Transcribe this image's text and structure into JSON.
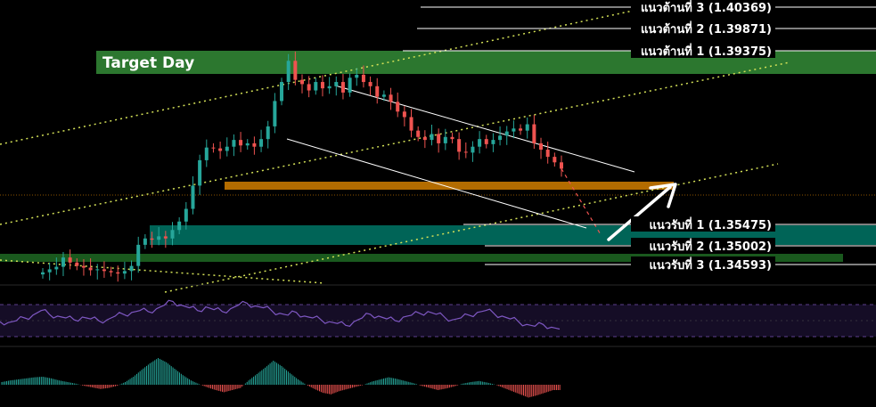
{
  "chart_data": {
    "type": "candlestick",
    "title": "",
    "target_label": "Target Day",
    "resistance_levels": [
      {
        "label": "แนวต้านที่ 3 (1.40369)",
        "price": 1.40369
      },
      {
        "label": "แนวต้านที่ 2 (1.39871)",
        "price": 1.39871
      },
      {
        "label": "แนวต้านที่ 1 (1.39375)",
        "price": 1.39375
      }
    ],
    "support_levels": [
      {
        "label": "แนวรับที่ 1 (1.35475)",
        "price": 1.35475
      },
      {
        "label": "แนวรับที่ 2 (1.35002)",
        "price": 1.35002
      },
      {
        "label": "แนวรับที่ 3 (1.34593)",
        "price": 1.34593
      }
    ],
    "ylim": [
      1.3425,
      1.4082
    ],
    "close_path": [
      1.3455,
      1.3462,
      1.3468,
      1.349,
      1.3478,
      1.347,
      1.3466,
      1.346,
      1.3462,
      1.3458,
      1.3455,
      1.3452,
      1.3458,
      1.347,
      1.352,
      1.3535,
      1.3532,
      1.354,
      1.3535,
      1.3555,
      1.3575,
      1.3605,
      1.366,
      1.372,
      1.375,
      1.3748,
      1.3742,
      1.3752,
      1.3768,
      1.3755,
      1.376,
      1.3752,
      1.377,
      1.38,
      1.386,
      1.3905,
      1.3955,
      1.391,
      1.39,
      1.3885,
      1.3905,
      1.389,
      1.3895,
      1.3905,
      1.388,
      1.3915,
      1.3922,
      1.3905,
      1.3895,
      1.387,
      1.3875,
      1.3858,
      1.3835,
      1.3822,
      1.379,
      1.3775,
      1.3768,
      1.3782,
      1.376,
      1.3775,
      1.377,
      1.374,
      1.3738,
      1.3752,
      1.377,
      1.3758,
      1.3768,
      1.3778,
      1.3788,
      1.3795,
      1.379,
      1.3805,
      1.376,
      1.3745,
      1.3728,
      1.3715,
      1.37
    ],
    "rsi_path": [
      48,
      47,
      49,
      52,
      55,
      60,
      56,
      54,
      52,
      50,
      53,
      51,
      49,
      50,
      54,
      56,
      58,
      60,
      59,
      62,
      66,
      70,
      66,
      63,
      60,
      64,
      61,
      59,
      62,
      66,
      68,
      65,
      63,
      60,
      57,
      55,
      58,
      54,
      52,
      50,
      48,
      46,
      44,
      48,
      52,
      56,
      54,
      51,
      49,
      53,
      55,
      57,
      59,
      56,
      53,
      50,
      52,
      55,
      58,
      60,
      57,
      54,
      51,
      48,
      45,
      43,
      45,
      42,
      40
    ],
    "macd_hist": [
      0.5,
      0.8,
      1.0,
      1.2,
      1.4,
      1.5,
      1.2,
      0.8,
      0.5,
      0.2,
      -0.2,
      -0.5,
      -0.8,
      -0.6,
      -0.2,
      0.5,
      1.5,
      2.8,
      4.0,
      5.0,
      4.2,
      3.0,
      1.8,
      0.8,
      0.1,
      -0.5,
      -1.0,
      -1.4,
      -1.0,
      -0.6,
      0.8,
      2.0,
      3.2,
      4.5,
      3.5,
      2.2,
      1.0,
      0.0,
      -0.8,
      -1.5,
      -1.8,
      -1.2,
      -0.8,
      -0.4,
      0.0,
      0.6,
      1.0,
      1.4,
      1.1,
      0.7,
      0.3,
      -0.2,
      -0.6,
      -1.0,
      -0.7,
      -0.3,
      0.2,
      0.5,
      0.7,
      0.4,
      0.0,
      -0.6,
      -1.2,
      -1.8,
      -2.4,
      -2.0,
      -1.5,
      -1.0
    ],
    "colors": {
      "background": "#000000",
      "target_zone": "#2e7d32",
      "support_zone": "#00695c",
      "support_zone_2": "#1b5e20",
      "entry_zone": "#c77800",
      "candle_up": "#26a69a",
      "candle_down": "#ef5350",
      "trend_line_dotted": "#d4e157",
      "channel_line": "#ffffff",
      "rsi_line": "#7e57c2",
      "level_line": "#ffffff",
      "projection_dash": "#ef5350",
      "arrow": "#ffffff"
    }
  }
}
